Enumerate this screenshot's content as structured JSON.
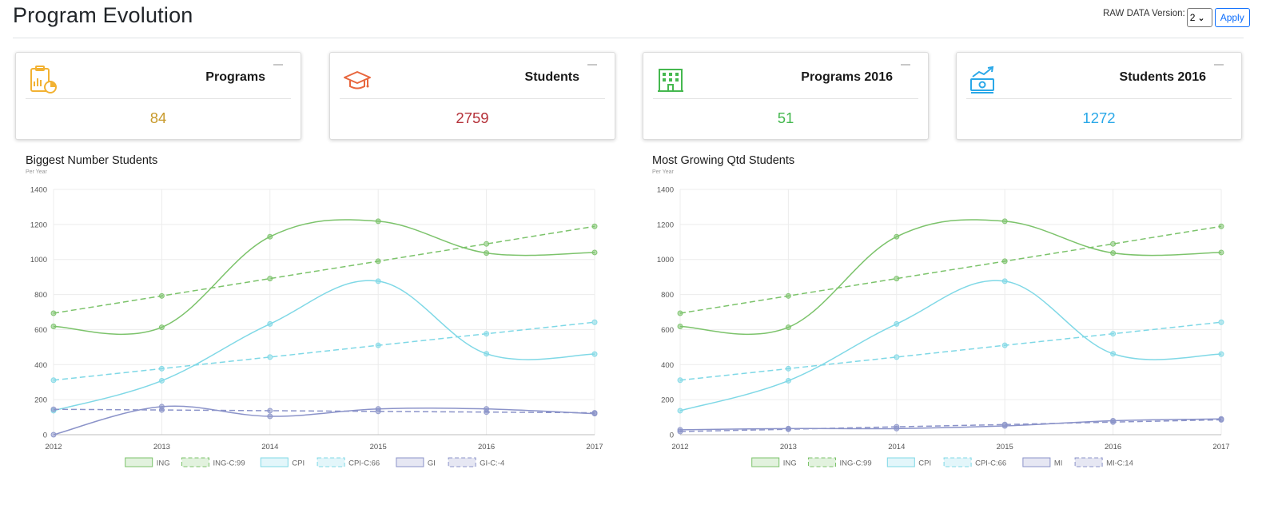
{
  "header": {
    "title": "Program Evolution",
    "raw_label": "RAW DATA Version:",
    "raw_value": "2",
    "apply_label": "Apply"
  },
  "cards": [
    {
      "title": "Programs",
      "value": "84",
      "color": "#c89a2b",
      "icon": "clipboard-chart-icon"
    },
    {
      "title": "Students",
      "value": "2759",
      "color": "#b5323a",
      "icon": "graduation-cap-icon"
    },
    {
      "title": "Programs 2016",
      "value": "51",
      "color": "#45b84f",
      "icon": "building-icon"
    },
    {
      "title": "Students 2016",
      "value": "1272",
      "color": "#2aa8e8",
      "icon": "money-growth-icon"
    }
  ],
  "charts": {
    "left": {
      "title": "Biggest Number Students",
      "subtitle": "Per Year"
    },
    "right": {
      "title": "Most Growing Qtd Students",
      "subtitle": "Per Year"
    }
  },
  "chart_data": [
    {
      "type": "line",
      "title": "Biggest Number Students",
      "subtitle": "Per Year",
      "x": [
        "2012",
        "2013",
        "2014",
        "2015",
        "2016",
        "2017"
      ],
      "ylim": [
        0,
        1400
      ],
      "yticks": [
        0,
        200,
        400,
        600,
        800,
        1000,
        1200,
        1400
      ],
      "grid": true,
      "legend_position": "bottom",
      "series": [
        {
          "name": "ING",
          "values": [
            618,
            613,
            1130,
            1218,
            1037,
            1040
          ],
          "color": "#7cc36b",
          "dash": false
        },
        {
          "name": "ING-C:99",
          "values": [
            693,
            792,
            891,
            990,
            1089,
            1189
          ],
          "color": "#7cc36b",
          "dash": true
        },
        {
          "name": "CPI",
          "values": [
            137,
            308,
            632,
            876,
            462,
            460
          ],
          "color": "#7fd8e6",
          "dash": false
        },
        {
          "name": "CPI-C:66",
          "values": [
            311,
            377,
            443,
            510,
            576,
            642
          ],
          "color": "#7fd8e6",
          "dash": true
        },
        {
          "name": "GI",
          "values": [
            0,
            160,
            105,
            147,
            147,
            120
          ],
          "color": "#8b93c9",
          "dash": false
        },
        {
          "name": "GI-C:-4",
          "values": [
            145,
            141,
            137,
            133,
            129,
            125
          ],
          "color": "#8b93c9",
          "dash": true
        }
      ]
    },
    {
      "type": "line",
      "title": "Most Growing Qtd Students",
      "subtitle": "Per Year",
      "x": [
        "2012",
        "2013",
        "2014",
        "2015",
        "2016",
        "2017"
      ],
      "ylim": [
        0,
        1400
      ],
      "yticks": [
        0,
        200,
        400,
        600,
        800,
        1000,
        1200,
        1400
      ],
      "grid": true,
      "legend_position": "bottom",
      "series": [
        {
          "name": "ING",
          "values": [
            618,
            613,
            1130,
            1218,
            1037,
            1040
          ],
          "color": "#7cc36b",
          "dash": false
        },
        {
          "name": "ING-C:99",
          "values": [
            693,
            792,
            891,
            990,
            1089,
            1189
          ],
          "color": "#7cc36b",
          "dash": true
        },
        {
          "name": "CPI",
          "values": [
            137,
            308,
            632,
            876,
            462,
            460
          ],
          "color": "#7fd8e6",
          "dash": false
        },
        {
          "name": "CPI-C:66",
          "values": [
            311,
            377,
            443,
            510,
            576,
            642
          ],
          "color": "#7fd8e6",
          "dash": true
        },
        {
          "name": "MI",
          "values": [
            28,
            35,
            35,
            50,
            80,
            90
          ],
          "color": "#8b93c9",
          "dash": false
        },
        {
          "name": "MI-C:14",
          "values": [
            18,
            31,
            45,
            58,
            72,
            85
          ],
          "color": "#8b93c9",
          "dash": true
        }
      ]
    }
  ]
}
